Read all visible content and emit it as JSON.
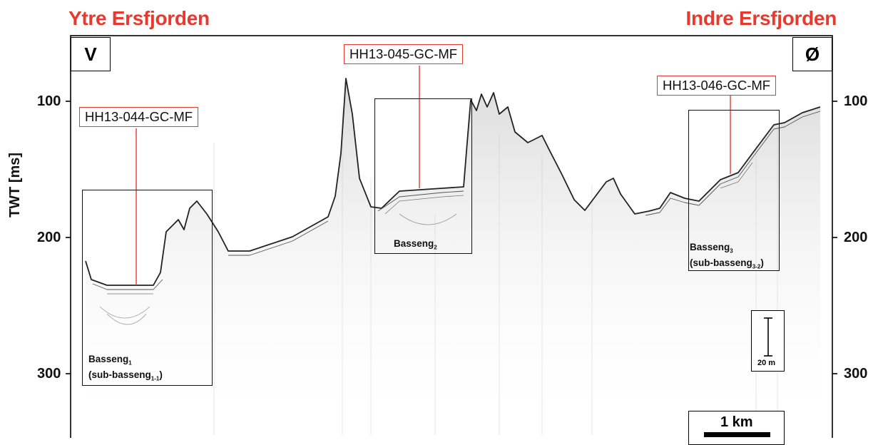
{
  "headers": {
    "left": "Ytre Ersfjorden",
    "right": "Indre Ersfjorden"
  },
  "directions": {
    "west": "V",
    "east": "Ø"
  },
  "axis": {
    "title": "TWT [ms]",
    "ticks_left": [
      "100",
      "200",
      "300"
    ],
    "ticks_right": [
      "100",
      "200",
      "300"
    ]
  },
  "cores": {
    "core1": "HH13-044-GC-MF",
    "core2": "HH13-045-GC-MF",
    "core3": "HH13-046-GC-MF"
  },
  "basins": {
    "b1": {
      "name": "Basseng",
      "sub": "1",
      "paren_open": "(sub-basseng",
      "paren_sub": "1-1",
      "paren_close": ")"
    },
    "b2": {
      "name": "Basseng",
      "sub": "2"
    },
    "b3": {
      "name": "Basseng",
      "sub": "3",
      "paren_open": "(sub-basseng",
      "paren_sub": "3-2",
      "paren_close": ")"
    }
  },
  "scales": {
    "vertical": "20 m",
    "horizontal": "1 km"
  },
  "colors": {
    "accent_red": "#e8392f",
    "reflector": "#222222"
  }
}
